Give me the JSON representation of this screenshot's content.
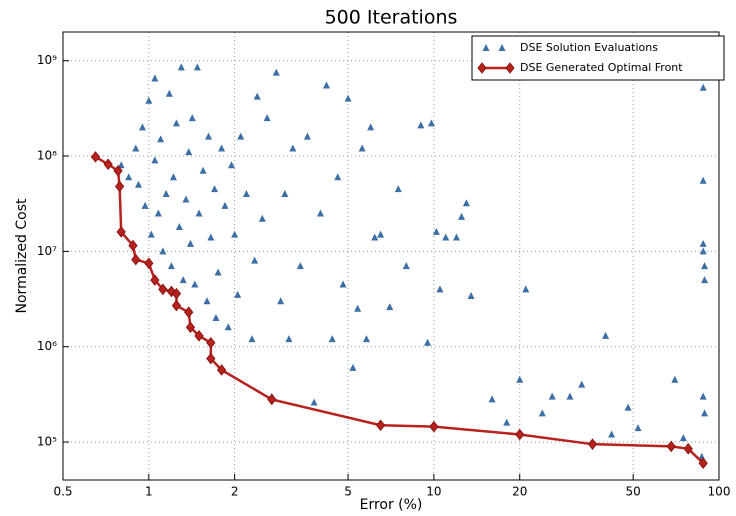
{
  "chart_data": {
    "type": "scatter",
    "title": "500 Iterations",
    "xlabel": "Error (%)",
    "ylabel": "Normalized Cost",
    "xscale": "log",
    "yscale": "log",
    "grid": true,
    "legend": "upper right",
    "xlim": [
      0.5,
      100
    ],
    "ylim": [
      40000,
      2000000000
    ],
    "xticks": [
      0.5,
      1,
      2,
      5,
      10,
      20,
      50,
      100
    ],
    "yticks": [
      {
        "value": 100000,
        "label": "10⁵"
      },
      {
        "value": 1000000,
        "label": "10⁶"
      },
      {
        "value": 10000000,
        "label": "10⁷"
      },
      {
        "value": 100000000,
        "label": "10⁸"
      },
      {
        "value": 1000000000,
        "label": "10⁹"
      }
    ],
    "series": [
      {
        "name": "DSE Solution Evaluations",
        "color": "#3b6fa6",
        "marker": "triangle",
        "x": [
          0.8,
          0.85,
          0.9,
          0.92,
          0.95,
          0.97,
          1.0,
          1.02,
          1.05,
          1.05,
          1.08,
          1.1,
          1.12,
          1.15,
          1.18,
          1.2,
          1.22,
          1.25,
          1.28,
          1.3,
          1.32,
          1.35,
          1.38,
          1.4,
          1.42,
          1.45,
          1.48,
          1.5,
          1.55,
          1.6,
          1.62,
          1.65,
          1.7,
          1.72,
          1.75,
          1.8,
          1.85,
          1.9,
          1.95,
          2.0,
          2.05,
          2.1,
          2.2,
          2.3,
          2.35,
          2.4,
          2.5,
          2.6,
          2.7,
          2.8,
          2.9,
          3.0,
          3.1,
          3.2,
          3.4,
          3.6,
          3.8,
          4.0,
          4.2,
          4.4,
          4.6,
          4.8,
          5.0,
          5.2,
          5.4,
          5.6,
          5.8,
          6.0,
          6.2,
          6.5,
          7.0,
          7.5,
          8.0,
          9.0,
          9.5,
          9.8,
          10.2,
          10.5,
          11,
          12,
          12.5,
          13,
          13.5,
          16,
          18,
          20,
          21,
          24,
          26,
          30,
          33,
          40,
          42,
          48,
          52,
          70,
          75,
          88,
          88,
          88,
          88,
          89,
          89,
          88,
          89,
          87
        ],
        "values": [
          80000000,
          60000000,
          120000000,
          50000000,
          200000000,
          30000000,
          380000000,
          15000000,
          650000000,
          90000000,
          25000000,
          150000000,
          10000000,
          40000000,
          450000000,
          7000000,
          60000000,
          220000000,
          18000000,
          850000000,
          5000000,
          35000000,
          110000000,
          12000000,
          250000000,
          4500000,
          850000000,
          25000000,
          70000000,
          3000000,
          160000000,
          14000000,
          45000000,
          2000000,
          6000000,
          120000000,
          30000000,
          1600000,
          80000000,
          15000000,
          3500000,
          160000000,
          40000000,
          1200000,
          8000000,
          420000000,
          22000000,
          250000000,
          300000,
          750000000,
          3000000,
          40000000,
          1200000,
          120000000,
          7000000,
          160000000,
          260000,
          25000000,
          550000000,
          1200000,
          60000000,
          4500000,
          400000000,
          600000,
          2500000,
          120000000,
          1200000,
          200000000,
          14000000,
          15000000,
          2600000,
          45000000,
          7000000,
          210000000,
          1100000,
          220000000,
          16000000,
          4000000,
          14000000,
          14000000,
          23000000,
          32000000,
          3400000,
          280000,
          160000,
          450000,
          4000000,
          200000,
          300000,
          300000,
          400000,
          1300000,
          120000,
          230000,
          140000,
          450000,
          110000,
          520000000,
          55000000,
          12000000,
          10000000,
          7000000,
          5000000,
          300000,
          200000,
          70000
        ]
      },
      {
        "name": "DSE Generated Optimal Front",
        "color": "#b8221e",
        "marker": "diamond",
        "line": true,
        "x": [
          0.65,
          0.72,
          0.78,
          0.79,
          0.8,
          0.88,
          0.9,
          1.0,
          1.05,
          1.12,
          1.2,
          1.25,
          1.25,
          1.38,
          1.4,
          1.5,
          1.65,
          1.65,
          1.8,
          2.7,
          6.5,
          10,
          20,
          36,
          68,
          78,
          88
        ],
        "values": [
          98000000,
          82000000,
          70000000,
          48000000,
          16000000,
          11500000,
          8200000,
          7500000,
          5000000,
          4000000,
          3800000,
          3600000,
          2700000,
          2300000,
          1600000,
          1300000,
          1100000,
          750000,
          570000,
          280000,
          150000,
          145000,
          120000,
          95000,
          90000,
          85000,
          60000
        ]
      }
    ]
  }
}
